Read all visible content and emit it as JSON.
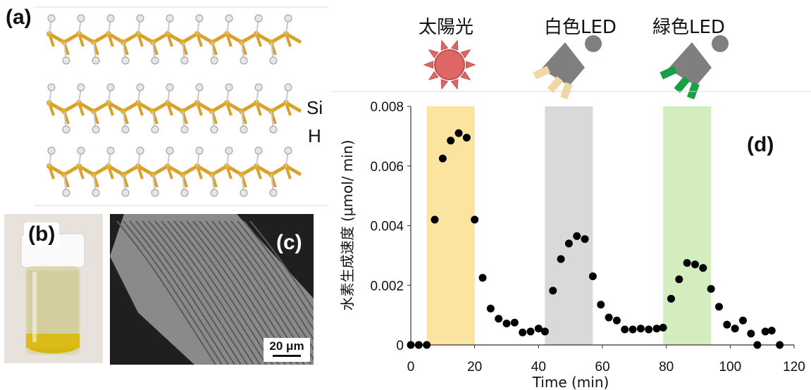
{
  "panels": {
    "a": {
      "label": "(a)",
      "atoms": [
        "Si",
        "H"
      ]
    },
    "b": {
      "label": "(b)"
    },
    "c": {
      "label": "(c)",
      "scalebar": "20 μm"
    },
    "d": {
      "label": "(d)"
    }
  },
  "lights": [
    {
      "label": "太陽光",
      "icon": "sun-icon",
      "color": "#e06666"
    },
    {
      "label": "白色LED",
      "icon": "flashlight-white-icon",
      "color": "#f1d7a0"
    },
    {
      "label": "緑色LED",
      "icon": "flashlight-green-icon",
      "color": "#19a046"
    }
  ],
  "chart_data": {
    "type": "scatter",
    "xlabel": "Time (min)",
    "ylabel": "水素生成速度 (μmol/ min)",
    "xlim": [
      0,
      120
    ],
    "ylim": [
      0,
      0.008
    ],
    "xticks": [
      "0",
      "20",
      "40",
      "60",
      "80",
      "100",
      "120"
    ],
    "yticks": [
      "0",
      "0.002",
      "0.004",
      "0.006",
      "0.008"
    ],
    "bands": [
      {
        "x": [
          5,
          20
        ],
        "color": "#fbe4a0",
        "light": "太陽光"
      },
      {
        "x": [
          42,
          57
        ],
        "color": "#d9d9d9",
        "light": "白色LED"
      },
      {
        "x": [
          79,
          94
        ],
        "color": "#d4edbf",
        "light": "緑色LED"
      }
    ],
    "points": [
      [
        0,
        0
      ],
      [
        2.5,
        0
      ],
      [
        5,
        0
      ],
      [
        7.5,
        0.0042
      ],
      [
        10,
        0.00625
      ],
      [
        12.5,
        0.00685
      ],
      [
        15,
        0.0071
      ],
      [
        17.5,
        0.00695
      ],
      [
        20,
        0.0042
      ],
      [
        22.5,
        0.00225
      ],
      [
        25,
        0.00122
      ],
      [
        27.5,
        0.00088
      ],
      [
        30,
        0.00072
      ],
      [
        32.5,
        0.00075
      ],
      [
        35,
        0.00042
      ],
      [
        37.5,
        0.00045
      ],
      [
        40,
        0.00055
      ],
      [
        42,
        0.00045
      ],
      [
        44.5,
        0.00182
      ],
      [
        47,
        0.00288
      ],
      [
        49.5,
        0.0034
      ],
      [
        52,
        0.00365
      ],
      [
        54.5,
        0.00355
      ],
      [
        57,
        0.0023
      ],
      [
        59.5,
        0.00135
      ],
      [
        62,
        0.00092
      ],
      [
        64.5,
        0.00082
      ],
      [
        67,
        0.00052
      ],
      [
        69.5,
        0.00052
      ],
      [
        72,
        0.00055
      ],
      [
        74.5,
        0.00052
      ],
      [
        77,
        0.00055
      ],
      [
        79,
        0.00058
      ],
      [
        81.5,
        0.00155
      ],
      [
        84,
        0.0022
      ],
      [
        86.5,
        0.00275
      ],
      [
        89,
        0.0027
      ],
      [
        91.5,
        0.00258
      ],
      [
        94,
        0.00188
      ],
      [
        96.5,
        0.00128
      ],
      [
        99,
        0.00068
      ],
      [
        101.5,
        0.00055
      ],
      [
        104,
        0.00082
      ],
      [
        106.5,
        0.00038
      ],
      [
        108.5,
        0.0
      ],
      [
        111,
        0.00045
      ],
      [
        113,
        0.00048
      ],
      [
        115.5,
        0.0
      ]
    ]
  }
}
